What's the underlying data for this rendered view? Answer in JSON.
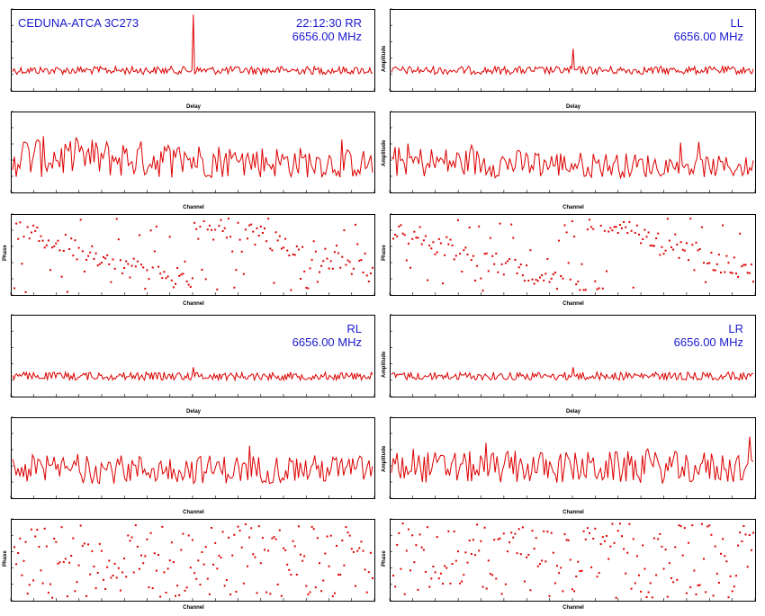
{
  "annotations": {
    "source": "CEDUNA-ATCA 3C273",
    "time_pol": "22:12:30  RR",
    "freq_rr": "6656.00  MHz",
    "pol_ll": "LL",
    "freq_ll": "6656.00  MHz",
    "pol_rl": "RL",
    "freq_rl": "6656.00  MHz",
    "pol_lr": "LR",
    "freq_lr": "6656.00  MHz"
  },
  "axis_labels": {
    "delay": "Delay",
    "channel": "Channel",
    "amplitude": "Amplitude",
    "phase": "Phase"
  },
  "colors": {
    "trace": "#dd0000",
    "text": "#1a1ad0",
    "frame": "#000000"
  },
  "chart_data": [
    {
      "type": "line",
      "panel": "RR delay",
      "xlabel": "Delay",
      "ylabel": "",
      "features": {
        "baseline": "noise",
        "peak_x_fraction": 0.5,
        "peak_height": "strong"
      }
    },
    {
      "type": "line",
      "panel": "LL delay",
      "xlabel": "Delay",
      "ylabel": "Amplitude",
      "features": {
        "baseline": "noise",
        "peak_x_fraction": 0.5,
        "peak_height": "weak"
      }
    },
    {
      "type": "line",
      "panel": "RR amplitude vs channel",
      "xlabel": "Channel",
      "ylabel": ""
    },
    {
      "type": "line",
      "panel": "LL amplitude vs channel",
      "xlabel": "Channel",
      "ylabel": "Amplitude"
    },
    {
      "type": "scatter",
      "panel": "RR phase vs channel",
      "xlabel": "Channel",
      "ylabel": "Phase",
      "features": {
        "phase_slope": "descending wrap"
      }
    },
    {
      "type": "scatter",
      "panel": "LL phase vs channel",
      "xlabel": "Channel",
      "ylabel": "Phase",
      "features": {
        "phase_slope": "descending wrap"
      }
    },
    {
      "type": "line",
      "panel": "RL delay",
      "xlabel": "Delay",
      "ylabel": ""
    },
    {
      "type": "line",
      "panel": "LR delay",
      "xlabel": "Delay",
      "ylabel": "Amplitude"
    },
    {
      "type": "line",
      "panel": "RL amplitude vs channel",
      "xlabel": "Channel",
      "ylabel": ""
    },
    {
      "type": "line",
      "panel": "LR amplitude vs channel",
      "xlabel": "Channel",
      "ylabel": "Amplitude"
    },
    {
      "type": "scatter",
      "panel": "RL phase vs channel",
      "xlabel": "Channel",
      "ylabel": "Phase",
      "features": {
        "phase_slope": "random"
      }
    },
    {
      "type": "scatter",
      "panel": "LR phase vs channel",
      "xlabel": "Channel",
      "ylabel": "Phase",
      "features": {
        "phase_slope": "random"
      }
    }
  ]
}
